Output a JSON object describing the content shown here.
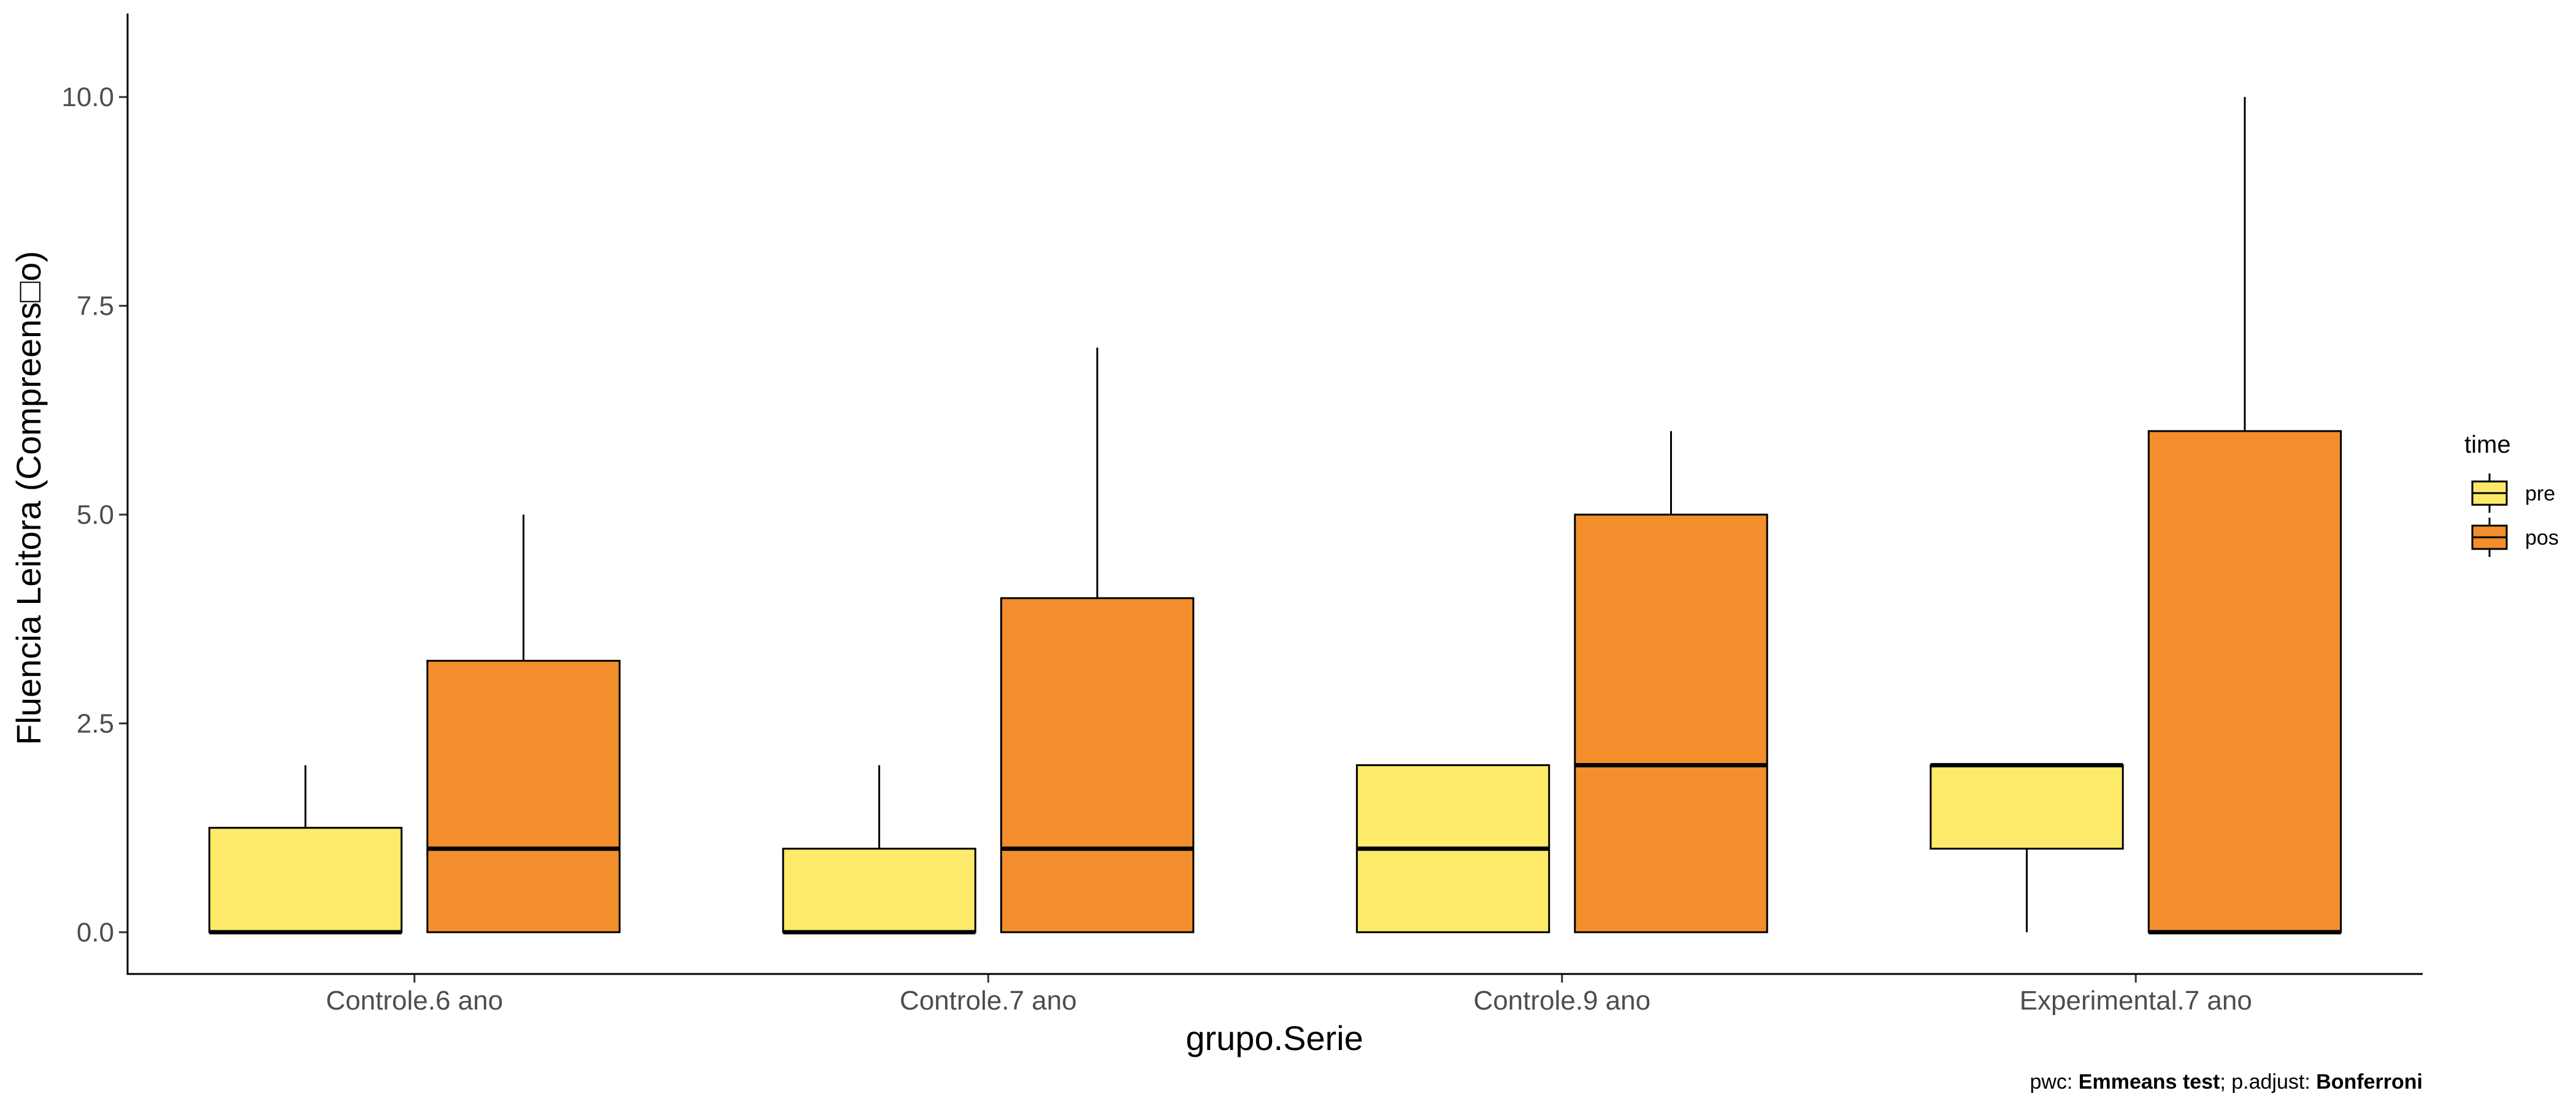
{
  "chart_data": {
    "type": "boxplot",
    "xlabel": "grupo.Serie",
    "ylabel": "Fluencia Leitora (Compreens□o)",
    "categories": [
      "Controle.6 ano",
      "Controle.7 ano",
      "Controle.9 ano",
      "Experimental.7 ano"
    ],
    "ylim": [
      -0.5,
      11.0
    ],
    "yticks": [
      "0.0",
      "2.5",
      "5.0",
      "7.5",
      "10.0"
    ],
    "ytick_values": [
      0,
      2.5,
      5.0,
      7.5,
      10.0
    ],
    "grid": false,
    "legend": {
      "title": "time",
      "placement": "right",
      "entries": [
        {
          "label": "pre",
          "color": "#FDEA6A"
        },
        {
          "label": "pos",
          "color": "#F28E2B"
        }
      ]
    },
    "series": [
      {
        "name": "pre",
        "color": "#FDEA6A",
        "boxes": [
          {
            "category": "Controle.6 ano",
            "min": 0,
            "q1": 0,
            "median": 0,
            "q3": 1.25,
            "max": 2
          },
          {
            "category": "Controle.7 ano",
            "min": 0,
            "q1": 0,
            "median": 0,
            "q3": 1,
            "max": 2
          },
          {
            "category": "Controle.9 ano",
            "min": 0,
            "q1": 0,
            "median": 1,
            "q3": 2,
            "max": 2
          },
          {
            "category": "Experimental.7 ano",
            "min": 0,
            "q1": 1,
            "median": 2,
            "q3": 2,
            "max": 2
          }
        ]
      },
      {
        "name": "pos",
        "color": "#F28E2B",
        "boxes": [
          {
            "category": "Controle.6 ano",
            "min": 0,
            "q1": 0,
            "median": 1,
            "q3": 3.25,
            "max": 5
          },
          {
            "category": "Controle.7 ano",
            "min": 0,
            "q1": 0,
            "median": 1,
            "q3": 4,
            "max": 7
          },
          {
            "category": "Controle.9 ano",
            "min": 0,
            "q1": 0,
            "median": 2,
            "q3": 5,
            "max": 6
          },
          {
            "category": "Experimental.7 ano",
            "min": 0,
            "q1": 0,
            "median": 0,
            "q3": 6,
            "max": 10
          }
        ]
      }
    ],
    "caption": {
      "prefix": "pwc: ",
      "method": "Emmeans test",
      "middle": "; p.adjust: ",
      "adjust": "Bonferroni"
    }
  }
}
